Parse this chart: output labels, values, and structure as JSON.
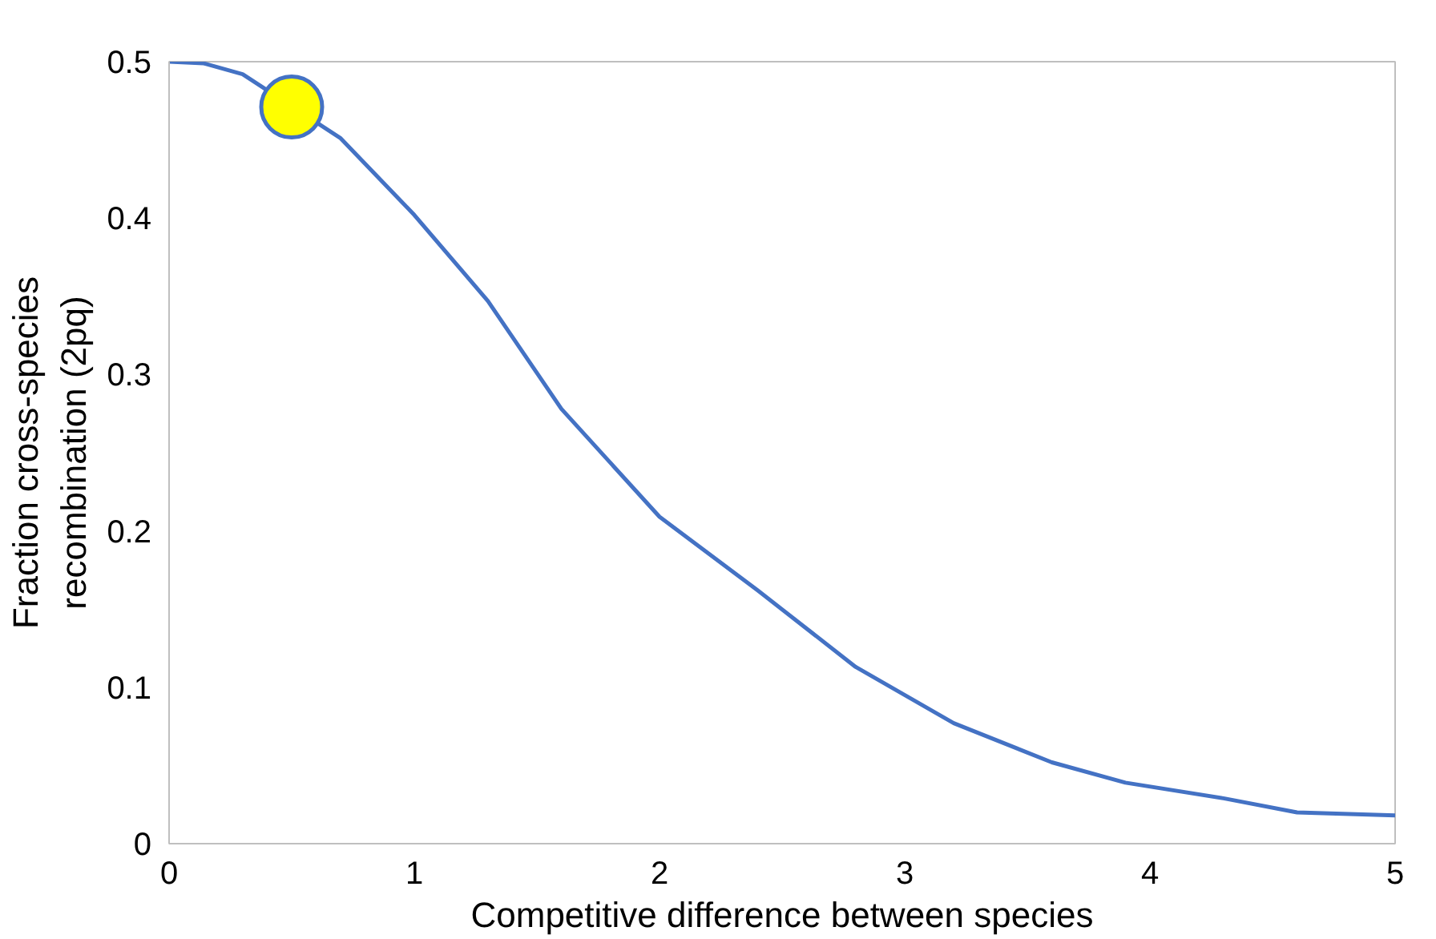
{
  "chart_data": {
    "type": "line",
    "xlabel": "Competitive difference between species",
    "ylabel": "Fraction cross-species\nrecombination (2pq)",
    "xlim": [
      0,
      5
    ],
    "ylim": [
      0,
      0.5
    ],
    "xticks": [
      0,
      1,
      2,
      3,
      4,
      5
    ],
    "yticks": [
      0,
      0.1,
      0.2,
      0.3,
      0.4,
      0.5
    ],
    "grid": false,
    "series": [
      {
        "color": "#4472c4",
        "x": [
          0,
          0.14,
          0.3,
          0.7,
          1.0,
          1.3,
          1.6,
          2.0,
          2.4,
          2.8,
          3.2,
          3.6,
          3.9,
          4.3,
          4.6,
          5.0
        ],
        "values": [
          0.5,
          0.499,
          0.492,
          0.451,
          0.402,
          0.347,
          0.278,
          0.209,
          0.162,
          0.113,
          0.077,
          0.052,
          0.039,
          0.029,
          0.02,
          0.018
        ]
      },
      {
        "type": "scatter",
        "color": "#ffff00",
        "marker": "circle",
        "x": [
          0.5
        ],
        "values": [
          0.471
        ]
      }
    ]
  }
}
